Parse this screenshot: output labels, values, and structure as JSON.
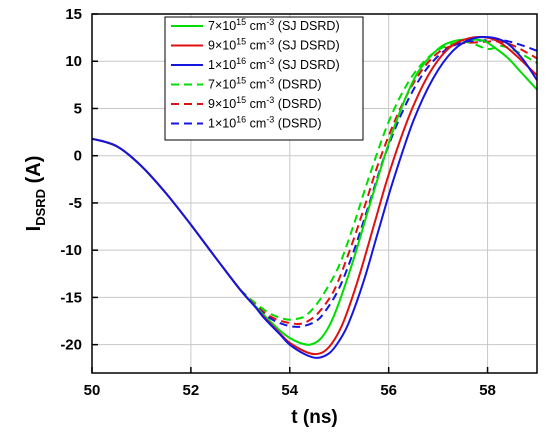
{
  "chart_data": {
    "type": "line",
    "xlabel": "t (ns)",
    "ylabel_main": "I",
    "ylabel_sub": "DSRD",
    "ylabel_unit": " (A)",
    "xlim": [
      50,
      59
    ],
    "ylim": [
      -23,
      15
    ],
    "x_ticks": [
      "50",
      "52",
      "54",
      "56",
      "58"
    ],
    "y_ticks": [
      "15",
      "10",
      "5",
      "0",
      "-5",
      "-10",
      "-15",
      "-20"
    ],
    "grid": true,
    "legend_position": "top-right",
    "colors": {
      "green": "#00dd00",
      "red": "#e01010",
      "blue": "#1515e0"
    },
    "series": [
      {
        "name_pre": "7×10",
        "name_exp1": "15",
        "name_mid": " cm",
        "name_exp2": "-3",
        "name_post": " (SJ DSRD)",
        "color": "#00dd00",
        "dash": "solid",
        "points": [
          [
            50,
            1.8
          ],
          [
            50.5,
            1.0
          ],
          [
            51,
            -1.1
          ],
          [
            51.5,
            -4.0
          ],
          [
            52,
            -7.3
          ],
          [
            52.5,
            -10.8
          ],
          [
            53,
            -14.2
          ],
          [
            53.3,
            -15.9
          ],
          [
            53.5,
            -17.0
          ],
          [
            53.8,
            -18.5
          ],
          [
            54,
            -19.3
          ],
          [
            54.2,
            -19.8
          ],
          [
            54.4,
            -20.0
          ],
          [
            54.6,
            -19.5
          ],
          [
            54.8,
            -18.0
          ],
          [
            55,
            -15.5
          ],
          [
            55.3,
            -10.8
          ],
          [
            55.6,
            -5.5
          ],
          [
            56,
            1.3
          ],
          [
            56.3,
            5.6
          ],
          [
            56.6,
            8.9
          ],
          [
            57,
            11.3
          ],
          [
            57.3,
            12.1
          ],
          [
            57.6,
            12.3
          ],
          [
            57.9,
            12.2
          ],
          [
            58.1,
            11.6
          ],
          [
            58.4,
            10.4
          ],
          [
            58.7,
            8.7
          ],
          [
            59,
            7.0
          ]
        ]
      },
      {
        "name_pre": "9×10",
        "name_exp1": "15",
        "name_mid": " cm",
        "name_exp2": "-3",
        "name_post": " (SJ DSRD)",
        "color": "#e01010",
        "dash": "solid",
        "points": [
          [
            50,
            1.8
          ],
          [
            50.5,
            1.0
          ],
          [
            51,
            -1.1
          ],
          [
            51.5,
            -4.0
          ],
          [
            52,
            -7.3
          ],
          [
            52.5,
            -10.8
          ],
          [
            53,
            -14.2
          ],
          [
            53.3,
            -16.0
          ],
          [
            53.5,
            -17.2
          ],
          [
            53.8,
            -18.8
          ],
          [
            54,
            -19.8
          ],
          [
            54.3,
            -20.7
          ],
          [
            54.5,
            -21.0
          ],
          [
            54.7,
            -20.7
          ],
          [
            54.9,
            -19.5
          ],
          [
            55.1,
            -17.4
          ],
          [
            55.4,
            -12.8
          ],
          [
            55.7,
            -7.4
          ],
          [
            56,
            -2.0
          ],
          [
            56.4,
            4.0
          ],
          [
            56.8,
            8.5
          ],
          [
            57.2,
            11.3
          ],
          [
            57.6,
            12.4
          ],
          [
            58,
            12.5
          ],
          [
            58.3,
            11.8
          ],
          [
            58.6,
            10.5
          ],
          [
            59,
            8.5
          ]
        ]
      },
      {
        "name_pre": "1×10",
        "name_exp1": "16",
        "name_mid": " cm",
        "name_exp2": "-3",
        "name_post": " (SJ DSRD)",
        "color": "#1515e0",
        "dash": "solid",
        "points": [
          [
            50,
            1.8
          ],
          [
            50.5,
            1.0
          ],
          [
            51,
            -1.1
          ],
          [
            51.5,
            -4.0
          ],
          [
            52,
            -7.3
          ],
          [
            52.5,
            -10.8
          ],
          [
            53,
            -14.2
          ],
          [
            53.3,
            -16.0
          ],
          [
            53.5,
            -17.3
          ],
          [
            53.8,
            -18.9
          ],
          [
            54,
            -20.0
          ],
          [
            54.3,
            -21.0
          ],
          [
            54.55,
            -21.4
          ],
          [
            54.8,
            -20.9
          ],
          [
            55,
            -19.6
          ],
          [
            55.2,
            -17.6
          ],
          [
            55.5,
            -13.2
          ],
          [
            55.8,
            -7.8
          ],
          [
            56.1,
            -2.5
          ],
          [
            56.5,
            3.7
          ],
          [
            56.9,
            8.2
          ],
          [
            57.3,
            11.1
          ],
          [
            57.7,
            12.4
          ],
          [
            58.1,
            12.5
          ],
          [
            58.4,
            11.9
          ],
          [
            58.7,
            10.3
          ],
          [
            59,
            8.0
          ]
        ]
      },
      {
        "name_pre": "7×10",
        "name_exp1": "15",
        "name_mid": " cm",
        "name_exp2": "-3",
        "name_post": " (DSRD)",
        "color": "#00dd00",
        "dash": "dashed",
        "points": [
          [
            53,
            -14.2
          ],
          [
            53.3,
            -15.6
          ],
          [
            53.6,
            -16.7
          ],
          [
            53.9,
            -17.3
          ],
          [
            54.1,
            -17.3
          ],
          [
            54.3,
            -17.0
          ],
          [
            54.5,
            -16.0
          ],
          [
            54.7,
            -14.5
          ],
          [
            55,
            -11.6
          ],
          [
            55.3,
            -7.2
          ],
          [
            55.6,
            -2.3
          ],
          [
            56,
            3.6
          ],
          [
            56.4,
            7.8
          ],
          [
            56.8,
            10.4
          ],
          [
            57.2,
            11.7
          ],
          [
            57.6,
            12.0
          ],
          [
            58,
            11.3
          ],
          [
            58.3,
            11.6
          ],
          [
            58.6,
            11.0
          ],
          [
            59,
            9.8
          ]
        ]
      },
      {
        "name_pre": "9×10",
        "name_exp1": "15",
        "name_mid": " cm",
        "name_exp2": "-3",
        "name_post": " (DSRD)",
        "color": "#e01010",
        "dash": "dashed",
        "points": [
          [
            53,
            -14.2
          ],
          [
            53.3,
            -15.8
          ],
          [
            53.6,
            -17.0
          ],
          [
            53.9,
            -17.6
          ],
          [
            54.2,
            -17.8
          ],
          [
            54.4,
            -17.4
          ],
          [
            54.6,
            -16.5
          ],
          [
            54.9,
            -14.2
          ],
          [
            55.2,
            -10.2
          ],
          [
            55.5,
            -5.6
          ],
          [
            55.8,
            -0.7
          ],
          [
            56.2,
            4.6
          ],
          [
            56.6,
            8.5
          ],
          [
            57,
            10.9
          ],
          [
            57.4,
            11.8
          ],
          [
            57.8,
            12.0
          ],
          [
            58.2,
            12.1
          ],
          [
            58.5,
            11.7
          ],
          [
            58.8,
            10.9
          ],
          [
            59,
            10.3
          ]
        ]
      },
      {
        "name_pre": "1×10",
        "name_exp1": "16",
        "name_mid": " cm",
        "name_exp2": "-3",
        "name_post": " (DSRD)",
        "color": "#1515e0",
        "dash": "dashed",
        "points": [
          [
            53,
            -14.2
          ],
          [
            53.3,
            -15.9
          ],
          [
            53.6,
            -17.2
          ],
          [
            53.9,
            -17.9
          ],
          [
            54.2,
            -18.1
          ],
          [
            54.5,
            -17.6
          ],
          [
            54.7,
            -16.6
          ],
          [
            55,
            -14.0
          ],
          [
            55.3,
            -10.0
          ],
          [
            55.6,
            -5.2
          ],
          [
            55.9,
            -0.3
          ],
          [
            56.3,
            4.9
          ],
          [
            56.7,
            8.7
          ],
          [
            57.1,
            11.0
          ],
          [
            57.5,
            12.0
          ],
          [
            57.9,
            12.2
          ],
          [
            58.2,
            12.3
          ],
          [
            58.5,
            12.0
          ],
          [
            58.8,
            11.5
          ],
          [
            59,
            11.1
          ]
        ]
      }
    ]
  }
}
